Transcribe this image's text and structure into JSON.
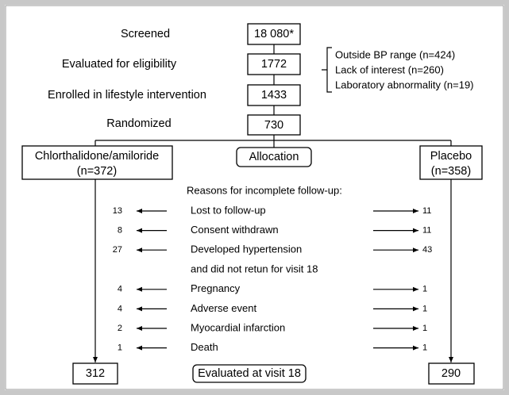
{
  "steps": [
    {
      "label": "Screened",
      "count": "18 080*"
    },
    {
      "label": "Evaluated for eligibility",
      "count": 1772
    },
    {
      "label": "Enrolled in lifestyle intervention",
      "count": 1433
    },
    {
      "label": "Randomized",
      "count": 730
    }
  ],
  "exclusions": [
    "Outside BP range (n=424)",
    "Lack of interest (n=260)",
    "Laboratory abnormality (n=19)"
  ],
  "arms": [
    {
      "label": "Chlorthalidone/amiloride",
      "n": "(n=372)",
      "final": 312
    },
    {
      "label": "Placebo",
      "n": "(n=358)",
      "final": 290
    }
  ],
  "allocation": "Allocation",
  "reasons_title": "Reasons for incomplete follow-up:",
  "reasons": [
    {
      "left": 13,
      "label": "Lost to follow-up",
      "right": 11
    },
    {
      "left": 8,
      "label": "Consent withdrawn",
      "right": 11
    },
    {
      "left": 27,
      "label": "Developed hypertension",
      "label_continued": "and did not retun for visit 18",
      "right": 43
    },
    {
      "left": 4,
      "label": "Pregnancy",
      "right": 1
    },
    {
      "left": 4,
      "label": "Adverse event",
      "right": 1
    },
    {
      "left": 2,
      "label": "Myocardial infarction",
      "right": 1
    },
    {
      "left": 1,
      "label": "Death",
      "right": 1
    }
  ],
  "footer": "Evaluated at visit 18"
}
